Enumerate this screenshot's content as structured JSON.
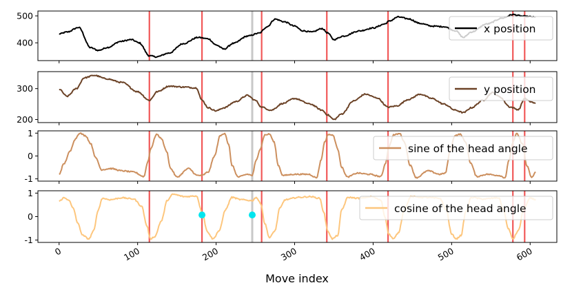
{
  "chart_data": {
    "type": "line",
    "xlabel": "Move index",
    "x_range": [
      -27,
      634
    ],
    "x_ticks": [
      0,
      100,
      200,
      300,
      400,
      500,
      600
    ],
    "n_points": 608,
    "red_vlines": [
      115,
      182,
      258,
      341,
      419,
      578,
      593
    ],
    "gray_vlines": [
      246
    ],
    "panels": [
      {
        "name": "x-position",
        "legend": "x position",
        "color": "#000000",
        "ylim": [
          334,
          518
        ],
        "yticks": [
          400,
          500
        ],
        "keypoints": [
          [
            0,
            433
          ],
          [
            10,
            440
          ],
          [
            25,
            457
          ],
          [
            40,
            382
          ],
          [
            50,
            372
          ],
          [
            62,
            383
          ],
          [
            78,
            405
          ],
          [
            92,
            412
          ],
          [
            102,
            400
          ],
          [
            115,
            352
          ],
          [
            124,
            348
          ],
          [
            140,
            362
          ],
          [
            158,
            397
          ],
          [
            177,
            420
          ],
          [
            190,
            415
          ],
          [
            200,
            392
          ],
          [
            210,
            377
          ],
          [
            222,
            398
          ],
          [
            240,
            425
          ],
          [
            255,
            436
          ],
          [
            265,
            460
          ],
          [
            275,
            488
          ],
          [
            287,
            478
          ],
          [
            300,
            462
          ],
          [
            310,
            445
          ],
          [
            322,
            440
          ],
          [
            335,
            453
          ],
          [
            342,
            437
          ],
          [
            350,
            412
          ],
          [
            362,
            425
          ],
          [
            382,
            444
          ],
          [
            400,
            455
          ],
          [
            415,
            470
          ],
          [
            420,
            480
          ],
          [
            432,
            496
          ],
          [
            445,
            489
          ],
          [
            460,
            472
          ],
          [
            475,
            462
          ],
          [
            490,
            460
          ],
          [
            505,
            445
          ],
          [
            515,
            420
          ],
          [
            525,
            440
          ],
          [
            545,
            470
          ],
          [
            565,
            492
          ],
          [
            578,
            505
          ],
          [
            590,
            499
          ],
          [
            600,
            497
          ],
          [
            607,
            495
          ]
        ]
      },
      {
        "name": "y-position",
        "legend": "y position",
        "color": "#6b4226",
        "ylim": [
          190,
          355
        ],
        "yticks": [
          200,
          300
        ],
        "keypoints": [
          [
            0,
            298
          ],
          [
            10,
            275
          ],
          [
            22,
            300
          ],
          [
            32,
            335
          ],
          [
            45,
            343
          ],
          [
            60,
            332
          ],
          [
            80,
            320
          ],
          [
            100,
            290
          ],
          [
            115,
            262
          ],
          [
            125,
            290
          ],
          [
            140,
            308
          ],
          [
            160,
            305
          ],
          [
            175,
            302
          ],
          [
            182,
            262
          ],
          [
            190,
            238
          ],
          [
            200,
            228
          ],
          [
            210,
            238
          ],
          [
            225,
            258
          ],
          [
            240,
            278
          ],
          [
            250,
            262
          ],
          [
            258,
            240
          ],
          [
            270,
            230
          ],
          [
            285,
            252
          ],
          [
            300,
            268
          ],
          [
            320,
            250
          ],
          [
            335,
            230
          ],
          [
            342,
            215
          ],
          [
            350,
            200
          ],
          [
            360,
            218
          ],
          [
            375,
            260
          ],
          [
            390,
            282
          ],
          [
            405,
            270
          ],
          [
            419,
            240
          ],
          [
            430,
            244
          ],
          [
            445,
            265
          ],
          [
            460,
            282
          ],
          [
            475,
            268
          ],
          [
            490,
            250
          ],
          [
            505,
            230
          ],
          [
            515,
            222
          ],
          [
            525,
            238
          ],
          [
            540,
            262
          ],
          [
            552,
            287
          ],
          [
            560,
            275
          ],
          [
            575,
            240
          ],
          [
            585,
            232
          ],
          [
            593,
            268
          ],
          [
            600,
            258
          ],
          [
            607,
            252
          ]
        ]
      },
      {
        "name": "sine-head-angle",
        "legend": "sine of the head angle",
        "color": "#cc8f5e",
        "ylim": [
          -1.1,
          1.1
        ],
        "yticks": [
          -1,
          0,
          1
        ],
        "keypoints": [
          [
            0,
            -0.8
          ],
          [
            6,
            -0.35
          ],
          [
            14,
            0.2
          ],
          [
            20,
            0.72
          ],
          [
            26,
            1.0
          ],
          [
            34,
            0.88
          ],
          [
            40,
            0.55
          ],
          [
            47,
            -0.1
          ],
          [
            54,
            -0.6
          ],
          [
            66,
            -0.55
          ],
          [
            80,
            -0.65
          ],
          [
            95,
            -0.7
          ],
          [
            108,
            -0.9
          ],
          [
            113,
            -0.25
          ],
          [
            117,
            0.35
          ],
          [
            124,
            0.95
          ],
          [
            130,
            0.78
          ],
          [
            137,
            0.2
          ],
          [
            142,
            -0.55
          ],
          [
            150,
            -0.92
          ],
          [
            165,
            -0.55
          ],
          [
            176,
            -0.85
          ],
          [
            182,
            -0.85
          ],
          [
            190,
            -0.7
          ],
          [
            198,
            0.0
          ],
          [
            205,
            0.88
          ],
          [
            211,
            1.0
          ],
          [
            216,
            0.5
          ],
          [
            220,
            -0.4
          ],
          [
            228,
            -0.92
          ],
          [
            240,
            -0.8
          ],
          [
            246,
            -0.85
          ],
          [
            251,
            -0.2
          ],
          [
            256,
            0.3
          ],
          [
            262,
            0.92
          ],
          [
            268,
            0.96
          ],
          [
            274,
            0.6
          ],
          [
            279,
            -0.4
          ],
          [
            285,
            -0.85
          ],
          [
            300,
            -0.8
          ],
          [
            318,
            -0.8
          ],
          [
            328,
            -0.95
          ],
          [
            334,
            -0.15
          ],
          [
            338,
            0.6
          ],
          [
            343,
            0.95
          ],
          [
            349,
            0.9
          ],
          [
            355,
            0.3
          ],
          [
            360,
            -0.5
          ],
          [
            367,
            -0.92
          ],
          [
            380,
            -0.75
          ],
          [
            395,
            -0.8
          ],
          [
            410,
            -0.9
          ],
          [
            416,
            -0.3
          ],
          [
            420,
            0.4
          ],
          [
            426,
            0.92
          ],
          [
            434,
            0.98
          ],
          [
            440,
            0.6
          ],
          [
            447,
            -0.4
          ],
          [
            455,
            -0.95
          ],
          [
            470,
            -0.65
          ],
          [
            485,
            -0.8
          ],
          [
            492,
            -0.75
          ],
          [
            498,
            0.2
          ],
          [
            504,
            0.9
          ],
          [
            511,
            0.95
          ],
          [
            518,
            0.6
          ],
          [
            524,
            -0.3
          ],
          [
            532,
            -0.9
          ],
          [
            545,
            -0.8
          ],
          [
            560,
            -0.85
          ],
          [
            568,
            -0.95
          ],
          [
            573,
            -0.2
          ],
          [
            578,
            0.6
          ],
          [
            583,
            0.98
          ],
          [
            590,
            0.55
          ],
          [
            596,
            -0.45
          ],
          [
            602,
            -0.95
          ],
          [
            607,
            -0.7
          ]
        ]
      },
      {
        "name": "cosine-head-angle",
        "legend": "cosine of the head angle",
        "color": "#fdc67d",
        "ylim": [
          -1.1,
          1.1
        ],
        "yticks": [
          -1,
          0,
          1
        ],
        "keypoints": [
          [
            0,
            0.65
          ],
          [
            6,
            0.8
          ],
          [
            12,
            0.72
          ],
          [
            18,
            0.35
          ],
          [
            24,
            -0.3
          ],
          [
            30,
            -0.8
          ],
          [
            38,
            -0.95
          ],
          [
            44,
            -0.6
          ],
          [
            50,
            0.3
          ],
          [
            55,
            0.78
          ],
          [
            65,
            0.72
          ],
          [
            80,
            0.8
          ],
          [
            95,
            0.75
          ],
          [
            105,
            0.45
          ],
          [
            112,
            -0.4
          ],
          [
            116,
            -0.95
          ],
          [
            122,
            -0.85
          ],
          [
            130,
            -0.2
          ],
          [
            138,
            0.7
          ],
          [
            145,
            0.95
          ],
          [
            160,
            0.85
          ],
          [
            175,
            0.88
          ],
          [
            182,
            0.2
          ],
          [
            189,
            -0.65
          ],
          [
            196,
            -0.95
          ],
          [
            204,
            -0.6
          ],
          [
            212,
            0.3
          ],
          [
            220,
            0.82
          ],
          [
            232,
            0.72
          ],
          [
            246,
            0.68
          ],
          [
            251,
            0.82
          ],
          [
            257,
            0.55
          ],
          [
            262,
            -0.3
          ],
          [
            268,
            -0.9
          ],
          [
            275,
            -0.6
          ],
          [
            281,
            0.35
          ],
          [
            288,
            0.72
          ],
          [
            305,
            0.82
          ],
          [
            320,
            0.85
          ],
          [
            332,
            0.78
          ],
          [
            337,
            0.2
          ],
          [
            342,
            -0.6
          ],
          [
            348,
            -0.95
          ],
          [
            355,
            -0.8
          ],
          [
            360,
            0.3
          ],
          [
            368,
            0.82
          ],
          [
            382,
            0.78
          ],
          [
            398,
            0.85
          ],
          [
            410,
            0.7
          ],
          [
            415,
            0.0
          ],
          [
            420,
            -0.75
          ],
          [
            426,
            -0.95
          ],
          [
            432,
            -0.7
          ],
          [
            440,
            0.3
          ],
          [
            448,
            0.85
          ],
          [
            465,
            0.82
          ],
          [
            485,
            0.78
          ],
          [
            493,
            0.3
          ],
          [
            500,
            -0.75
          ],
          [
            506,
            -0.95
          ],
          [
            512,
            -0.8
          ],
          [
            518,
            0.2
          ],
          [
            525,
            0.82
          ],
          [
            540,
            0.75
          ],
          [
            560,
            0.8
          ],
          [
            566,
            0.3
          ],
          [
            572,
            -0.5
          ],
          [
            578,
            -0.95
          ],
          [
            585,
            -0.6
          ],
          [
            592,
            0.35
          ],
          [
            600,
            0.78
          ],
          [
            607,
            0.72
          ]
        ]
      }
    ],
    "highlight_points": [
      {
        "x": 182,
        "y": 0.07
      },
      {
        "x": 246,
        "y": 0.07
      }
    ],
    "highlight_color": "#00e5ee"
  }
}
